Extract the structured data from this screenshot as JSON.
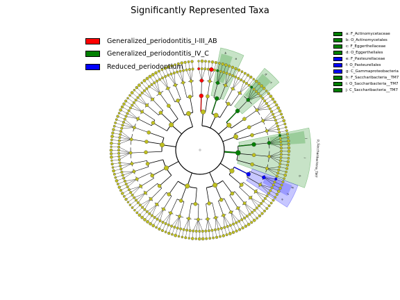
{
  "chart_data": {
    "type": "cladogram",
    "title": "Significantly Represented Taxa",
    "colors": {
      "Generalized_periodontitis_I-III_AB": "#ff0000",
      "Generalized_periodontitis_IV_C": "#008000",
      "Reduced_periodontium": "#0000ff",
      "non_significant_node": "#bfbf1f"
    },
    "groups": [
      {
        "name": "Generalized_periodontitis_I-III_AB",
        "color": "#ff0000"
      },
      {
        "name": "Generalized_periodontitis_IV_C",
        "color": "#008000"
      },
      {
        "name": "Reduced_periodontium",
        "color": "#0000ff"
      }
    ],
    "clades": [
      {
        "letter": "a",
        "label": "a: F_Actinomycetaceae",
        "group": "Generalized_periodontitis_IV_C",
        "color": "#008000"
      },
      {
        "letter": "b",
        "label": "b: O_Actinomycetales",
        "group": "Generalized_periodontitis_IV_C",
        "color": "#008000"
      },
      {
        "letter": "c",
        "label": "c: F_Eggerthellaceae",
        "group": "Generalized_periodontitis_IV_C",
        "color": "#008000"
      },
      {
        "letter": "d",
        "label": "d: O_Eggerthellales",
        "group": "Generalized_periodontitis_IV_C",
        "color": "#008000"
      },
      {
        "letter": "e",
        "label": "e: F_Pasteurellaceae",
        "group": "Reduced_periodontium",
        "color": "#0000ff"
      },
      {
        "letter": "f",
        "label": "f: O_Pasteurellales",
        "group": "Reduced_periodontium",
        "color": "#0000ff"
      },
      {
        "letter": "g",
        "label": "g: C_Gammaproteobacteria",
        "group": "Reduced_periodontium",
        "color": "#0000ff"
      },
      {
        "letter": "h",
        "label": "h: F_Saccharibacteria__TM7",
        "group": "Generalized_periodontitis_IV_C",
        "color": "#008000"
      },
      {
        "letter": "i",
        "label": "i: O_Saccharibacteria__TM7",
        "group": "Generalized_periodontitis_IV_C",
        "color": "#008000"
      },
      {
        "letter": "j",
        "label": "j: C_Saccharibacteria__TM7",
        "group": "Generalized_periodontitis_IV_C",
        "color": "#008000"
      }
    ],
    "outer_labels": [
      "p_Saccharibacteria_TM7"
    ],
    "leaf_count": 160,
    "legend_placement": "top-left"
  }
}
